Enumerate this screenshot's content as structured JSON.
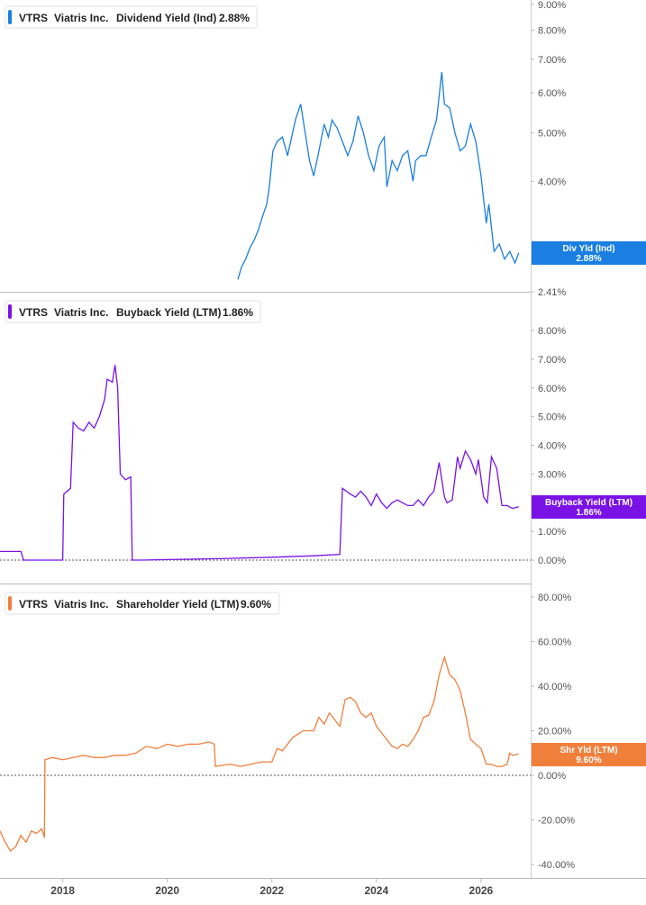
{
  "chart_data": [
    {
      "type": "line",
      "ticker": "VTRS",
      "company": "Viatris Inc.",
      "metric": "Dividend Yield (Ind)",
      "latest": "2.88%",
      "badge_label": "Div Yld (Ind)",
      "badge_value": "2.88%",
      "color": "#1a7fe0",
      "scale": "log",
      "ylim": [
        2.41,
        9.0
      ],
      "ticks": [
        {
          "v": 9.0,
          "label": "9.00%"
        },
        {
          "v": 8.0,
          "label": "8.00%"
        },
        {
          "v": 7.0,
          "label": "7.00%"
        },
        {
          "v": 6.0,
          "label": "6.00%"
        },
        {
          "v": 5.0,
          "label": "5.00%"
        },
        {
          "v": 4.0,
          "label": "4.00%"
        },
        {
          "v": 2.41,
          "label": "2.41%"
        }
      ],
      "x": [
        2021.35,
        2021.42,
        2021.5,
        2021.58,
        2021.66,
        2021.74,
        2021.82,
        2021.9,
        2021.95,
        2022.02,
        2022.1,
        2022.2,
        2022.3,
        2022.45,
        2022.55,
        2022.65,
        2022.72,
        2022.8,
        2022.9,
        2023.0,
        2023.08,
        2023.15,
        2023.25,
        2023.35,
        2023.45,
        2023.55,
        2023.65,
        2023.75,
        2023.85,
        2023.95,
        2024.05,
        2024.15,
        2024.2,
        2024.3,
        2024.4,
        2024.5,
        2024.6,
        2024.7,
        2024.75,
        2024.85,
        2024.95,
        2025.05,
        2025.15,
        2025.25,
        2025.3,
        2025.4,
        2025.5,
        2025.6,
        2025.7,
        2025.8,
        2025.9,
        2026.0,
        2026.1,
        2026.15,
        2026.25,
        2026.35,
        2026.45,
        2026.55,
        2026.65,
        2026.72
      ],
      "y": [
        2.55,
        2.7,
        2.8,
        2.95,
        3.05,
        3.2,
        3.4,
        3.6,
        3.9,
        4.6,
        4.8,
        4.9,
        4.5,
        5.3,
        5.7,
        4.9,
        4.4,
        4.1,
        4.6,
        5.2,
        4.9,
        5.3,
        5.1,
        4.8,
        4.5,
        4.8,
        5.4,
        5.0,
        4.5,
        4.2,
        4.7,
        4.9,
        3.9,
        4.4,
        4.2,
        4.5,
        4.6,
        4.0,
        4.4,
        4.5,
        4.5,
        4.9,
        5.3,
        6.6,
        5.7,
        5.6,
        5.0,
        4.6,
        4.7,
        5.2,
        4.8,
        4.1,
        3.3,
        3.6,
        2.9,
        3.0,
        2.8,
        2.9,
        2.75,
        2.88
      ]
    },
    {
      "type": "line",
      "ticker": "VTRS",
      "company": "Viatris Inc.",
      "metric": "Buyback Yield (LTM)",
      "latest": "1.86%",
      "badge_label": "Buyback Yield (LTM)",
      "badge_value": "1.86%",
      "color": "#7a12e6",
      "scale": "linear",
      "ylim": [
        -0.5,
        8.6
      ],
      "baseline": 0,
      "ticks": [
        {
          "v": 8.0,
          "label": "8.00%"
        },
        {
          "v": 7.0,
          "label": "7.00%"
        },
        {
          "v": 6.0,
          "label": "6.00%"
        },
        {
          "v": 5.0,
          "label": "5.00%"
        },
        {
          "v": 4.0,
          "label": "4.00%"
        },
        {
          "v": 3.0,
          "label": "3.00%"
        },
        {
          "v": 1.0,
          "label": "1.00%"
        },
        {
          "v": 0.0,
          "label": "0.00%"
        }
      ],
      "x": [
        2016.8,
        2017.2,
        2017.25,
        2017.9,
        2018.0,
        2018.02,
        2018.15,
        2018.2,
        2018.3,
        2018.4,
        2018.5,
        2018.6,
        2018.7,
        2018.8,
        2018.85,
        2018.95,
        2019.0,
        2019.05,
        2019.1,
        2019.2,
        2019.3,
        2019.33,
        2019.5,
        2020.0,
        2021.0,
        2022.0,
        2022.8,
        2023.3,
        2023.35,
        2023.5,
        2023.6,
        2023.7,
        2023.8,
        2023.9,
        2024.0,
        2024.1,
        2024.2,
        2024.3,
        2024.4,
        2024.5,
        2024.6,
        2024.7,
        2024.8,
        2024.9,
        2025.0,
        2025.1,
        2025.2,
        2025.3,
        2025.35,
        2025.45,
        2025.55,
        2025.6,
        2025.7,
        2025.8,
        2025.9,
        2025.95,
        2026.05,
        2026.12,
        2026.2,
        2026.3,
        2026.4,
        2026.5,
        2026.6,
        2026.72
      ],
      "y": [
        0.3,
        0.3,
        0.0,
        0.0,
        0.0,
        2.3,
        2.5,
        4.8,
        4.6,
        4.5,
        4.8,
        4.6,
        5.0,
        5.6,
        6.3,
        6.2,
        6.8,
        6.0,
        3.0,
        2.8,
        2.9,
        0.0,
        0.0,
        0.02,
        0.05,
        0.1,
        0.15,
        0.2,
        2.5,
        2.3,
        2.2,
        2.4,
        2.2,
        1.9,
        2.3,
        2.0,
        1.8,
        2.0,
        2.1,
        2.0,
        1.9,
        1.9,
        2.1,
        1.9,
        2.2,
        2.4,
        3.4,
        2.2,
        2.0,
        2.1,
        3.6,
        3.2,
        3.8,
        3.5,
        3.0,
        3.5,
        2.2,
        2.0,
        3.6,
        3.2,
        1.9,
        1.9,
        1.8,
        1.86
      ]
    },
    {
      "type": "line",
      "ticker": "VTRS",
      "company": "Viatris Inc.",
      "metric": "Shareholder Yield (LTM)",
      "latest": "9.60%",
      "badge_label": "Shr Yld (LTM)",
      "badge_value": "9.60%",
      "color": "#f07f3c",
      "scale": "linear",
      "ylim": [
        -46,
        86
      ],
      "baseline": 0,
      "ticks": [
        {
          "v": 80,
          "label": "80.00%"
        },
        {
          "v": 60,
          "label": "60.00%"
        },
        {
          "v": 40,
          "label": "40.00%"
        },
        {
          "v": 20,
          "label": "20.00%"
        },
        {
          "v": 0,
          "label": "0.00%"
        },
        {
          "v": -20,
          "label": "-20.00%"
        },
        {
          "v": -40,
          "label": "-40.00%"
        }
      ],
      "x": [
        2016.8,
        2016.9,
        2017.0,
        2017.1,
        2017.2,
        2017.3,
        2017.4,
        2017.5,
        2017.6,
        2017.65,
        2017.66,
        2017.8,
        2018.0,
        2018.2,
        2018.4,
        2018.6,
        2018.8,
        2019.0,
        2019.2,
        2019.4,
        2019.6,
        2019.8,
        2020.0,
        2020.2,
        2020.4,
        2020.6,
        2020.8,
        2020.9,
        2020.92,
        2021.2,
        2021.4,
        2021.6,
        2021.8,
        2022.0,
        2022.1,
        2022.2,
        2022.4,
        2022.6,
        2022.8,
        2022.9,
        2023.0,
        2023.1,
        2023.2,
        2023.3,
        2023.4,
        2023.5,
        2023.6,
        2023.7,
        2023.8,
        2023.9,
        2024.0,
        2024.1,
        2024.2,
        2024.3,
        2024.4,
        2024.5,
        2024.6,
        2024.7,
        2024.8,
        2024.9,
        2025.0,
        2025.1,
        2025.2,
        2025.3,
        2025.4,
        2025.5,
        2025.6,
        2025.7,
        2025.8,
        2025.9,
        2026.0,
        2026.1,
        2026.2,
        2026.3,
        2026.4,
        2026.5,
        2026.55,
        2026.6,
        2026.72
      ],
      "y": [
        -25,
        -30,
        -34,
        -32,
        -27,
        -30,
        -25,
        -26,
        -24,
        -28,
        7,
        8,
        7,
        8,
        9,
        8,
        8,
        9,
        9,
        10,
        13,
        12,
        14,
        13,
        14,
        14,
        15,
        14,
        4,
        5,
        4,
        5,
        6,
        6,
        12,
        11,
        17,
        20,
        20,
        26,
        23,
        28,
        25,
        22,
        34,
        35,
        33,
        28,
        26,
        28,
        22,
        19,
        16,
        13,
        12,
        14,
        13,
        16,
        20,
        26,
        27,
        33,
        45,
        53,
        45,
        43,
        38,
        28,
        16,
        14,
        12,
        5,
        5,
        4,
        4,
        5,
        10,
        9,
        9.6
      ]
    }
  ],
  "x_axis": {
    "xlim": [
      2016.8,
      2026.95
    ],
    "ticks": [
      {
        "v": 2018,
        "label": "2018"
      },
      {
        "v": 2020,
        "label": "2020"
      },
      {
        "v": 2022,
        "label": "2022"
      },
      {
        "v": 2024,
        "label": "2024"
      },
      {
        "v": 2026,
        "label": "2026"
      }
    ]
  }
}
